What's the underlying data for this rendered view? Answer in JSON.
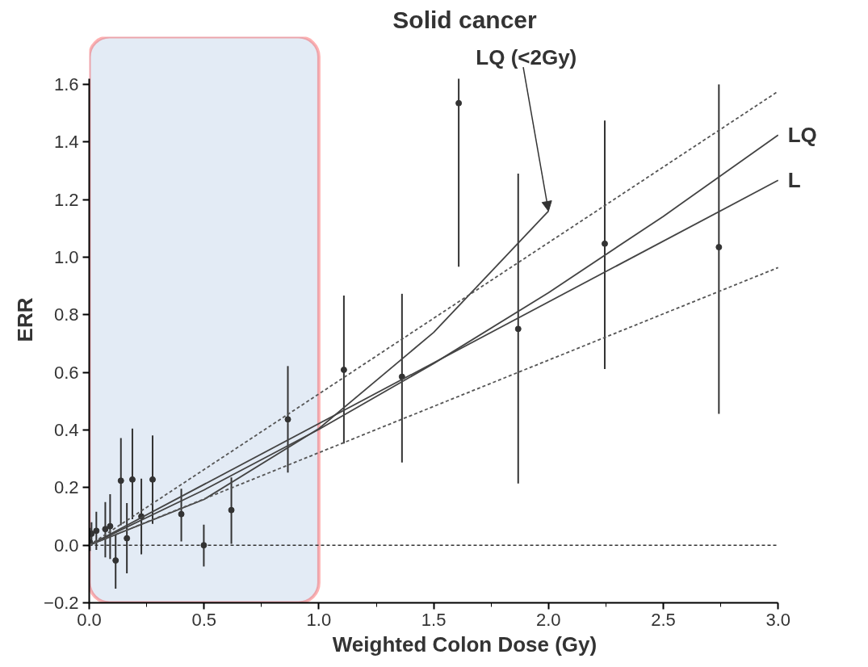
{
  "chart_data": {
    "type": "scatter",
    "title": "Solid cancer",
    "xlabel": "Weighted Colon Dose (Gy)",
    "ylabel": "ERR",
    "xlim": [
      0,
      3.0
    ],
    "ylim": [
      -0.2,
      1.62
    ],
    "xticks": [
      {
        "value": 0,
        "label": "0.0"
      },
      0.5,
      {
        "value": 1,
        "label": "1.0"
      },
      1.5,
      {
        "value": 2,
        "label": "2.0"
      },
      2.5,
      {
        "value": 3,
        "label": "3.0"
      }
    ],
    "yticks": [
      -0.2,
      {
        "value": 0,
        "label": "0.0"
      },
      0.2,
      0.4,
      0.6,
      0.8,
      {
        "value": 1,
        "label": "1.0"
      },
      1.2,
      1.4,
      1.6
    ],
    "grid": false,
    "series": [
      {
        "color": "#333333",
        "marker": "circle",
        "x": [
          0.003,
          0.01,
          0.031,
          0.07,
          0.091,
          0.115,
          0.138,
          0.164,
          0.188,
          0.227,
          0.276,
          0.401,
          0.499,
          0.619,
          0.865,
          1.109,
          1.362,
          1.609,
          1.868,
          2.245,
          2.742
        ],
        "values": [
          0.01,
          0.04,
          0.05,
          0.056,
          0.066,
          -0.053,
          0.224,
          0.024,
          0.228,
          0.1,
          0.228,
          0.108,
          0.0,
          0.122,
          0.437,
          0.609,
          0.585,
          1.535,
          0.751,
          1.047,
          1.035
        ],
        "errors": [
          [
            -0.02,
            0.06
          ],
          [
            0.0,
            0.08
          ],
          [
            -0.016,
            0.116
          ],
          [
            -0.042,
            0.15
          ],
          [
            -0.048,
            0.177
          ],
          [
            -0.151,
            0.037
          ],
          [
            0.069,
            0.372
          ],
          [
            -0.098,
            0.146
          ],
          [
            0.09,
            0.405
          ],
          [
            -0.032,
            0.231
          ],
          [
            0.074,
            0.381
          ],
          [
            0.013,
            0.196
          ],
          [
            -0.074,
            0.071
          ],
          [
            0.005,
            0.235
          ],
          [
            0.252,
            0.622
          ],
          [
            0.353,
            0.867
          ],
          [
            0.287,
            0.873
          ],
          [
            0.967,
            1.62
          ],
          [
            0.214,
            1.29
          ],
          [
            0.612,
            1.475
          ],
          [
            0.456,
            1.6
          ]
        ]
      },
      {
        "type": "line",
        "name": "LQ",
        "color": "#444444",
        "line_style": "solid",
        "marker": "none",
        "x": [
          0,
          0.5,
          1.0,
          1.5,
          2.0,
          2.5,
          3.0
        ],
        "values": [
          0,
          0.192,
          0.402,
          0.631,
          0.877,
          1.142,
          1.424
        ]
      },
      {
        "type": "line",
        "name": "L",
        "color": "#444444",
        "line_style": "solid",
        "marker": "none",
        "x": [
          0,
          3.0
        ],
        "values": [
          0,
          1.267
        ]
      },
      {
        "type": "line",
        "color": "#444444",
        "line_style": "solid",
        "marker": "none",
        "x": [
          0,
          0.5,
          1.0,
          1.5,
          2.0
        ],
        "values": [
          0,
          0.159,
          0.405,
          0.739,
          1.16
        ]
      },
      {
        "type": "line",
        "color": "#555555",
        "line_style": "dashed",
        "marker": "none",
        "x": [
          0,
          3.0
        ],
        "values": [
          0,
          1.576
        ]
      },
      {
        "type": "line",
        "color": "#555555",
        "line_style": "dashed",
        "marker": "none",
        "x": [
          0,
          3.0
        ],
        "values": [
          0,
          0.964
        ]
      }
    ],
    "ref_lines": [
      {
        "axis": "y",
        "value": 0,
        "line_style": "dashed",
        "color": "#333333"
      }
    ],
    "bands": [
      {
        "axis": "x",
        "from": 0,
        "to": 1.0,
        "color": "#dce6f2"
      }
    ],
    "annotations": [
      {
        "text": "LQ (<2Gy)",
        "x": 2.0,
        "y": 1.16
      }
    ]
  }
}
